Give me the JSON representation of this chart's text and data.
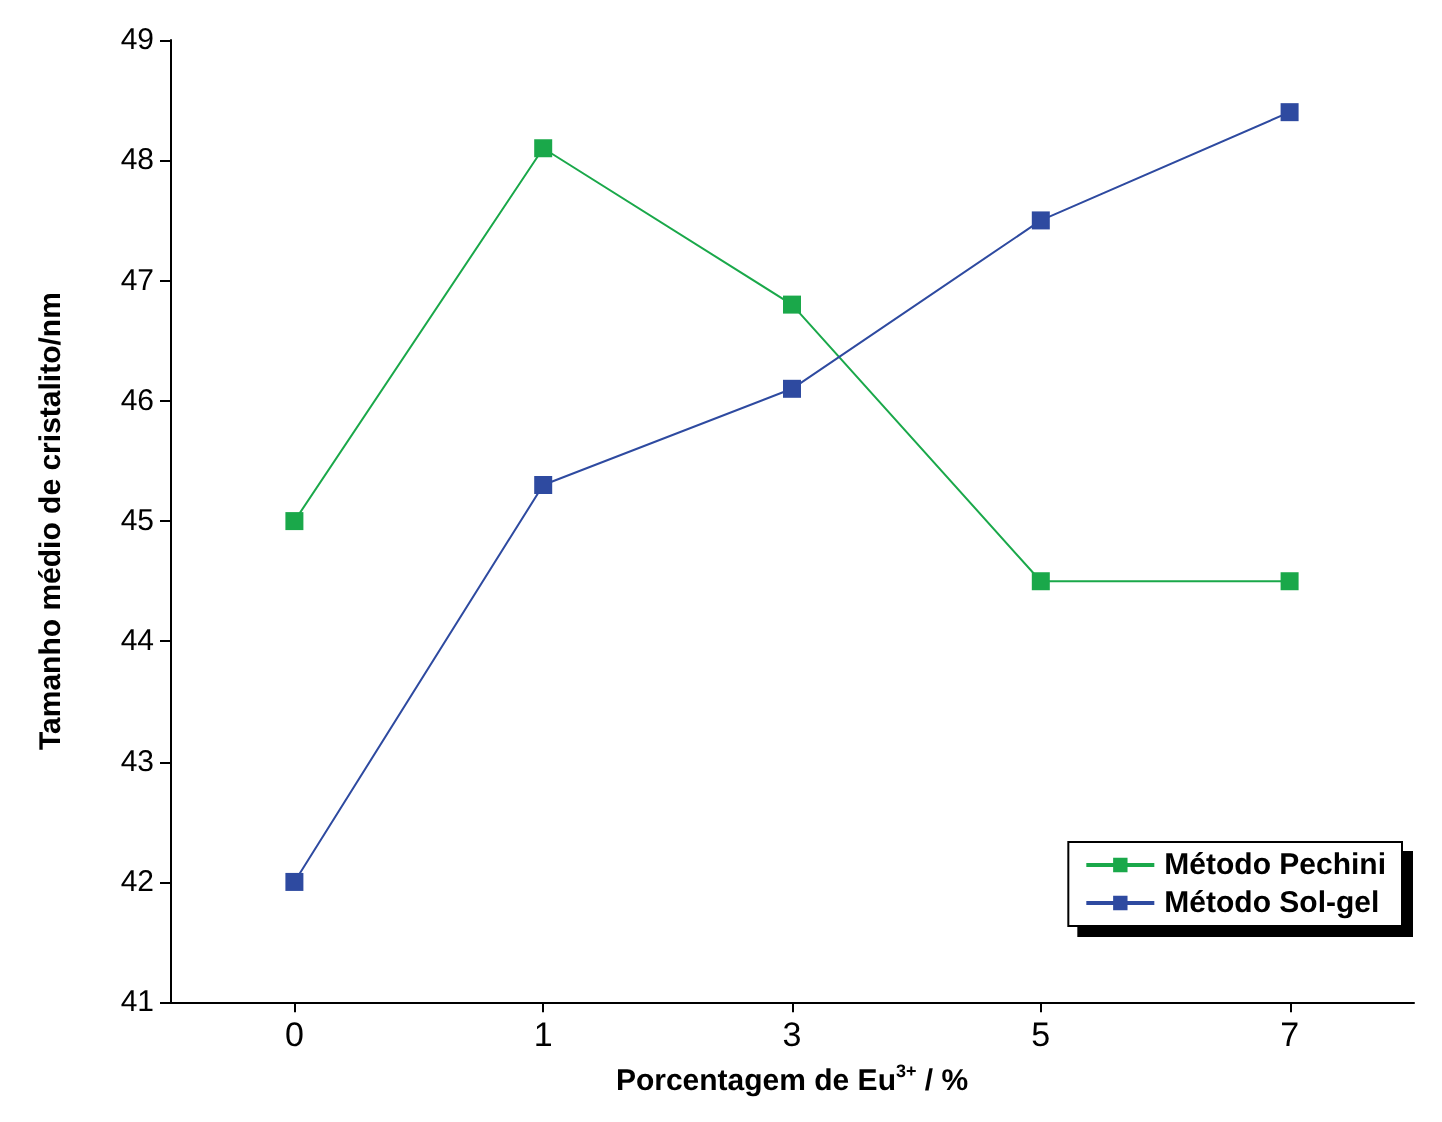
{
  "chart_data": {
    "type": "line",
    "xlabel": "Porcentagem de Eu$^{3+}$ / %",
    "ylabel": "Tamanho médio de cristalito/nm",
    "categories": [
      "0",
      "1",
      "3",
      "5",
      "7"
    ],
    "series": [
      {
        "name": "Método Pechini",
        "color": "#1aa84a",
        "values": [
          45,
          48.1,
          46.8,
          44.5,
          44.5
        ]
      },
      {
        "name": "Método Sol-gel",
        "color": "#2e4aa0",
        "values": [
          42,
          45.3,
          46.1,
          47.5,
          48.4
        ]
      }
    ],
    "ylim": [
      41,
      49
    ],
    "yticks": [
      41,
      42,
      43,
      44,
      45,
      46,
      47,
      48,
      49
    ],
    "grid": false,
    "legend": "bottom right",
    "marker": "square",
    "line_style": "solid"
  }
}
